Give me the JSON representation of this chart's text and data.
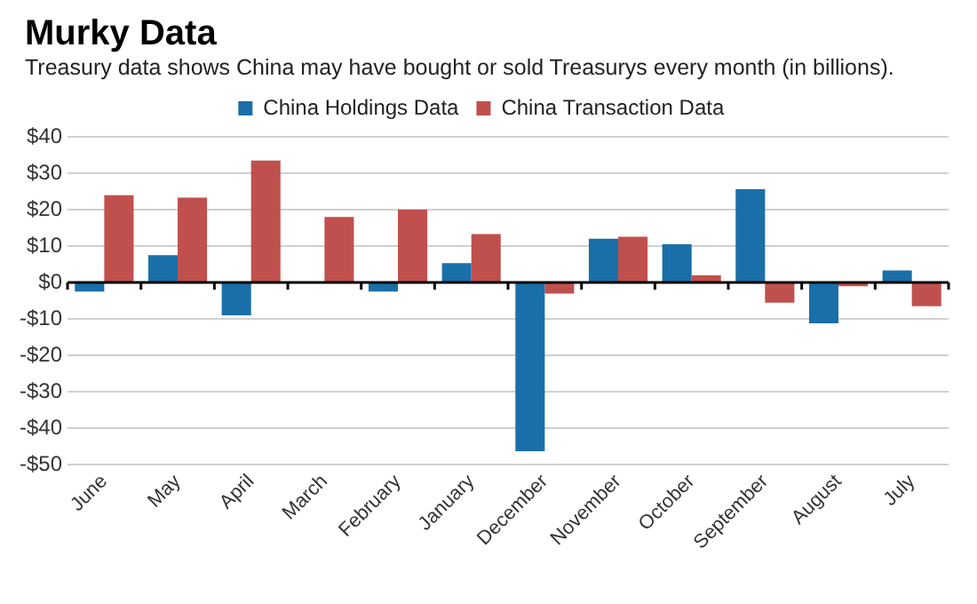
{
  "chart_data": {
    "type": "bar",
    "title": "Murky Data",
    "subtitle": "Treasury data shows China may have bought or sold Treasurys every month (in billions).",
    "categories": [
      "June",
      "May",
      "April",
      "March",
      "February",
      "January",
      "December",
      "November",
      "October",
      "September",
      "August",
      "July"
    ],
    "series": [
      {
        "name": "China Holdings Data",
        "color": "#1a6fa8",
        "values": [
          -2.5,
          7.5,
          -9,
          0,
          -2.5,
          5.3,
          -46.3,
          12,
          10.5,
          25.6,
          -11.2,
          3.3
        ]
      },
      {
        "name": "China Transaction Data",
        "color": "#c0504d",
        "values": [
          24,
          23.3,
          33.5,
          18,
          20,
          13.3,
          -3,
          12.6,
          2,
          -5.5,
          -1,
          -6.5
        ]
      }
    ],
    "ylim": [
      -50,
      40
    ],
    "yticks": [
      {
        "value": -50,
        "label": "-$50"
      },
      {
        "value": -40,
        "label": "-$40"
      },
      {
        "value": -30,
        "label": "-$30"
      },
      {
        "value": -20,
        "label": "-$20"
      },
      {
        "value": -10,
        "label": "-$10"
      },
      {
        "value": 0,
        "label": "$0"
      },
      {
        "value": 10,
        "label": "$10"
      },
      {
        "value": 20,
        "label": "$20"
      },
      {
        "value": 30,
        "label": "$30"
      },
      {
        "value": 40,
        "label": "$40"
      }
    ],
    "grid": "y",
    "legend": "top"
  }
}
